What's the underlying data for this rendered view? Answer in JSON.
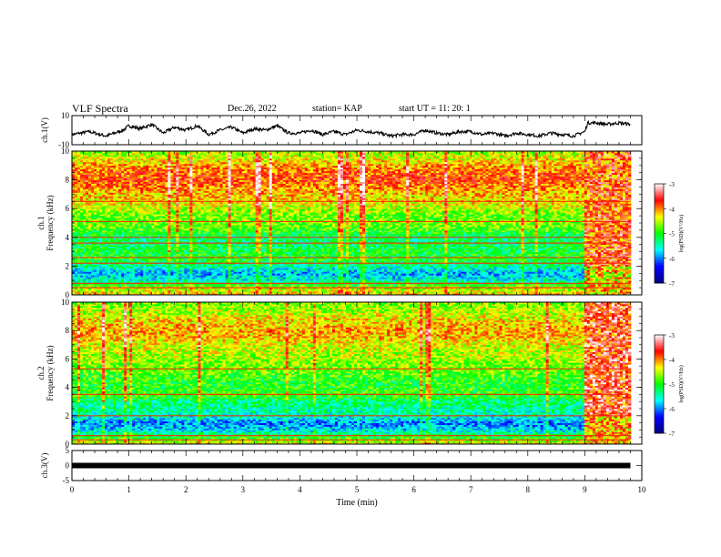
{
  "header": {
    "title": "VLF Spectra",
    "date": "Dec.26, 2022",
    "station": "station= KAP",
    "start": "start  UT =   11: 20: 1"
  },
  "chart_data": [
    {
      "type": "line",
      "panel": "ch.1 voltage",
      "ylabel": "ch.1(V)",
      "ylim": [
        -10,
        10
      ],
      "yticks": [
        -10,
        10
      ],
      "xlim": [
        0,
        10
      ],
      "series": [
        {
          "x": [
            0,
            0.3,
            0.6,
            0.9,
            1.0,
            1.2,
            1.4,
            1.6,
            1.8,
            2.0,
            2.2,
            2.4,
            2.6,
            2.8,
            3.0,
            3.2,
            3.4,
            3.6,
            3.8,
            4.0,
            4.2,
            4.4,
            4.6,
            4.8,
            5.0,
            5.2,
            5.4,
            5.6,
            5.8,
            6.0,
            6.2,
            6.4,
            6.6,
            6.8,
            7.0,
            7.2,
            7.4,
            7.6,
            7.8,
            8.0,
            8.2,
            8.4,
            8.6,
            8.8,
            9.0,
            9.05,
            9.2,
            9.4,
            9.6,
            9.8
          ],
          "values": [
            -3,
            -1,
            -4,
            0,
            3,
            1,
            4,
            -2,
            2,
            0,
            3,
            -3,
            0,
            2,
            -2,
            1,
            0,
            3,
            -2,
            -2,
            0,
            -3,
            -1,
            -3,
            0,
            -1,
            -2,
            -4,
            -3,
            -3,
            0,
            -2,
            -3,
            -1,
            -1,
            -3,
            -2,
            -4,
            -2,
            -3,
            -4,
            -2,
            -3,
            -4,
            -1,
            5,
            5,
            4,
            5,
            4
          ]
        }
      ]
    },
    {
      "type": "heatmap",
      "panel": "ch.1 spectrogram",
      "ylabel": "ch.1 Frequency (kHz)",
      "ylim": [
        0,
        10
      ],
      "yticks": [
        0,
        2,
        4,
        6,
        8,
        10
      ],
      "xlim": [
        0,
        10
      ],
      "colorbar": {
        "label": "log(PSD)(V²/Hz)",
        "range": [
          -7,
          -3
        ],
        "ticks": [
          -3,
          -4,
          -5,
          -6,
          -7
        ]
      },
      "profile_freq_khz": [
        0,
        0.5,
        1,
        1.5,
        2,
        2.5,
        3,
        3.5,
        4,
        4.5,
        5,
        5.5,
        6,
        6.5,
        7,
        7.5,
        8,
        8.5,
        9,
        9.5,
        10
      ],
      "profile_log_psd": [
        -4.2,
        -4.6,
        -5.5,
        -5.9,
        -5.4,
        -5.0,
        -5.1,
        -5.2,
        -5.3,
        -4.9,
        -4.7,
        -4.8,
        -4.5,
        -4.3,
        -4.2,
        -4.0,
        -3.8,
        -3.9,
        -4.1,
        -4.4,
        -4.6
      ],
      "lines_khz": [
        0.5,
        0.8,
        2.2,
        2.6,
        3.6,
        4.0,
        5.1,
        6.5
      ],
      "end_block": {
        "t": [
          9.0,
          9.8
        ],
        "log_psd": -3.8
      }
    },
    {
      "type": "heatmap",
      "panel": "ch.2 spectrogram",
      "ylabel": "ch.2 Frequency (kHz)",
      "ylim": [
        0,
        10
      ],
      "yticks": [
        0,
        2,
        4,
        6,
        8,
        10
      ],
      "xlim": [
        0,
        10
      ],
      "colorbar": {
        "label": "log(PSD)(V²/Hz)",
        "range": [
          -7,
          -3
        ],
        "ticks": [
          -3,
          -4,
          -5,
          -6,
          -7
        ]
      },
      "profile_freq_khz": [
        0,
        0.5,
        1,
        1.5,
        2,
        2.5,
        3,
        3.5,
        4,
        4.5,
        5,
        5.5,
        6,
        6.5,
        7,
        7.5,
        8,
        8.5,
        9,
        9.5,
        10
      ],
      "profile_log_psd": [
        -4.3,
        -5.0,
        -5.7,
        -6.0,
        -5.5,
        -5.4,
        -5.3,
        -4.9,
        -5.0,
        -5.0,
        -4.8,
        -4.7,
        -4.6,
        -4.5,
        -4.4,
        -4.2,
        -4.1,
        -4.2,
        -4.4,
        -4.6,
        -4.7
      ],
      "lines_khz": [
        0.3,
        0.6,
        2.0,
        3.5,
        5.3
      ],
      "end_block": {
        "t": [
          9.0,
          9.8
        ],
        "log_psd": -3.6
      }
    },
    {
      "type": "line",
      "panel": "ch.3 voltage",
      "ylabel": "ch.3(V)",
      "ylim": [
        -5,
        5
      ],
      "yticks": [
        -5,
        0,
        5
      ],
      "xlim": [
        0,
        10
      ],
      "series": [
        {
          "x": [
            0,
            9.8
          ],
          "values": [
            0,
            0
          ]
        }
      ]
    }
  ],
  "x_axis": {
    "label": "Time (min)",
    "ticks": [
      0,
      1,
      2,
      3,
      4,
      5,
      6,
      7,
      8,
      9,
      10
    ]
  },
  "colors": {
    "colormap": [
      "#000080",
      "#0000ff",
      "#00ffff",
      "#00ff00",
      "#ffff00",
      "#ff0000",
      "#ffffff"
    ]
  }
}
